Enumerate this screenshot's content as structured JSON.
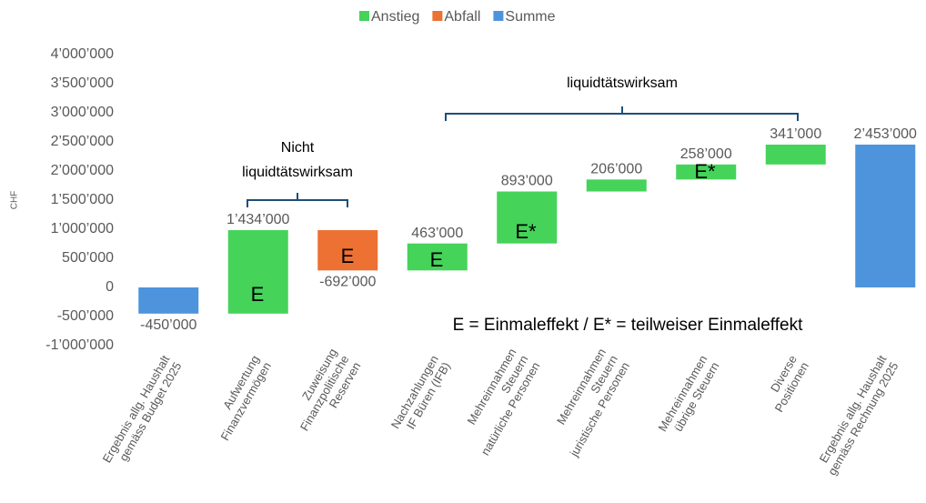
{
  "chart_data": {
    "type": "waterfall",
    "y_axis_label": "CHF",
    "categories": [
      "Ergebnis allg. Haushalt\ngemäss Budget 2025",
      "Aufwertung\nFinanzvermögen",
      "Zuweisung\nFinanzpolitische\nReserven",
      "Nachzahlungen\nIF Büren (IFB)",
      "Mehreinnahmen\nSteuern\nnatürliche Personen",
      "Mehreinnahmen\nSteuern\njuristische Personen",
      "Mehreinnahmen\nübrige Steuern",
      "Diverse\nPositionen",
      "Ergebnis allg. Haushalt\ngemäss Rechnung 2025"
    ],
    "values": [
      -450000,
      1434000,
      -692000,
      463000,
      893000,
      206000,
      258000,
      341000,
      2453000
    ],
    "value_labels": [
      "-450’000",
      "1’434’000",
      "-692’000",
      "463’000",
      "893’000",
      "206’000",
      "258’000",
      "341’000",
      "2’453’000"
    ],
    "measures": [
      "total",
      "relative",
      "relative",
      "relative",
      "relative",
      "relative",
      "relative",
      "relative",
      "total"
    ],
    "legend": [
      {
        "name": "Anstieg",
        "color": "#45d35a"
      },
      {
        "name": "Abfall",
        "color": "#ec7133"
      },
      {
        "name": "Summe",
        "color": "#4d94dc"
      }
    ],
    "ylim": [
      -1000000,
      4000000
    ],
    "yticks": [
      {
        "value": -1000000,
        "label": "-1’000’000"
      },
      {
        "value": -500000,
        "label": "-500’000"
      },
      0,
      {
        "value": 500000,
        "label": "500’000"
      },
      {
        "value": 1000000,
        "label": "1’000’000"
      },
      {
        "value": 1500000,
        "label": "1’500’000"
      },
      {
        "value": 2000000,
        "label": "2’000’000"
      },
      {
        "value": 2500000,
        "label": "2’500’000"
      },
      {
        "value": 3000000,
        "label": "3’000’000"
      },
      {
        "value": 3500000,
        "label": "3’500’000"
      },
      {
        "value": 4000000,
        "label": "4’000’000"
      }
    ],
    "grid": false,
    "annotations": [
      "E",
      "E",
      "E",
      "E*",
      "E*",
      "Nicht",
      "liquidtätswirksam",
      "liquidtätswirksam",
      "E = Einmaleffekt / E* = teilweiser Einmaleffekt"
    ]
  }
}
